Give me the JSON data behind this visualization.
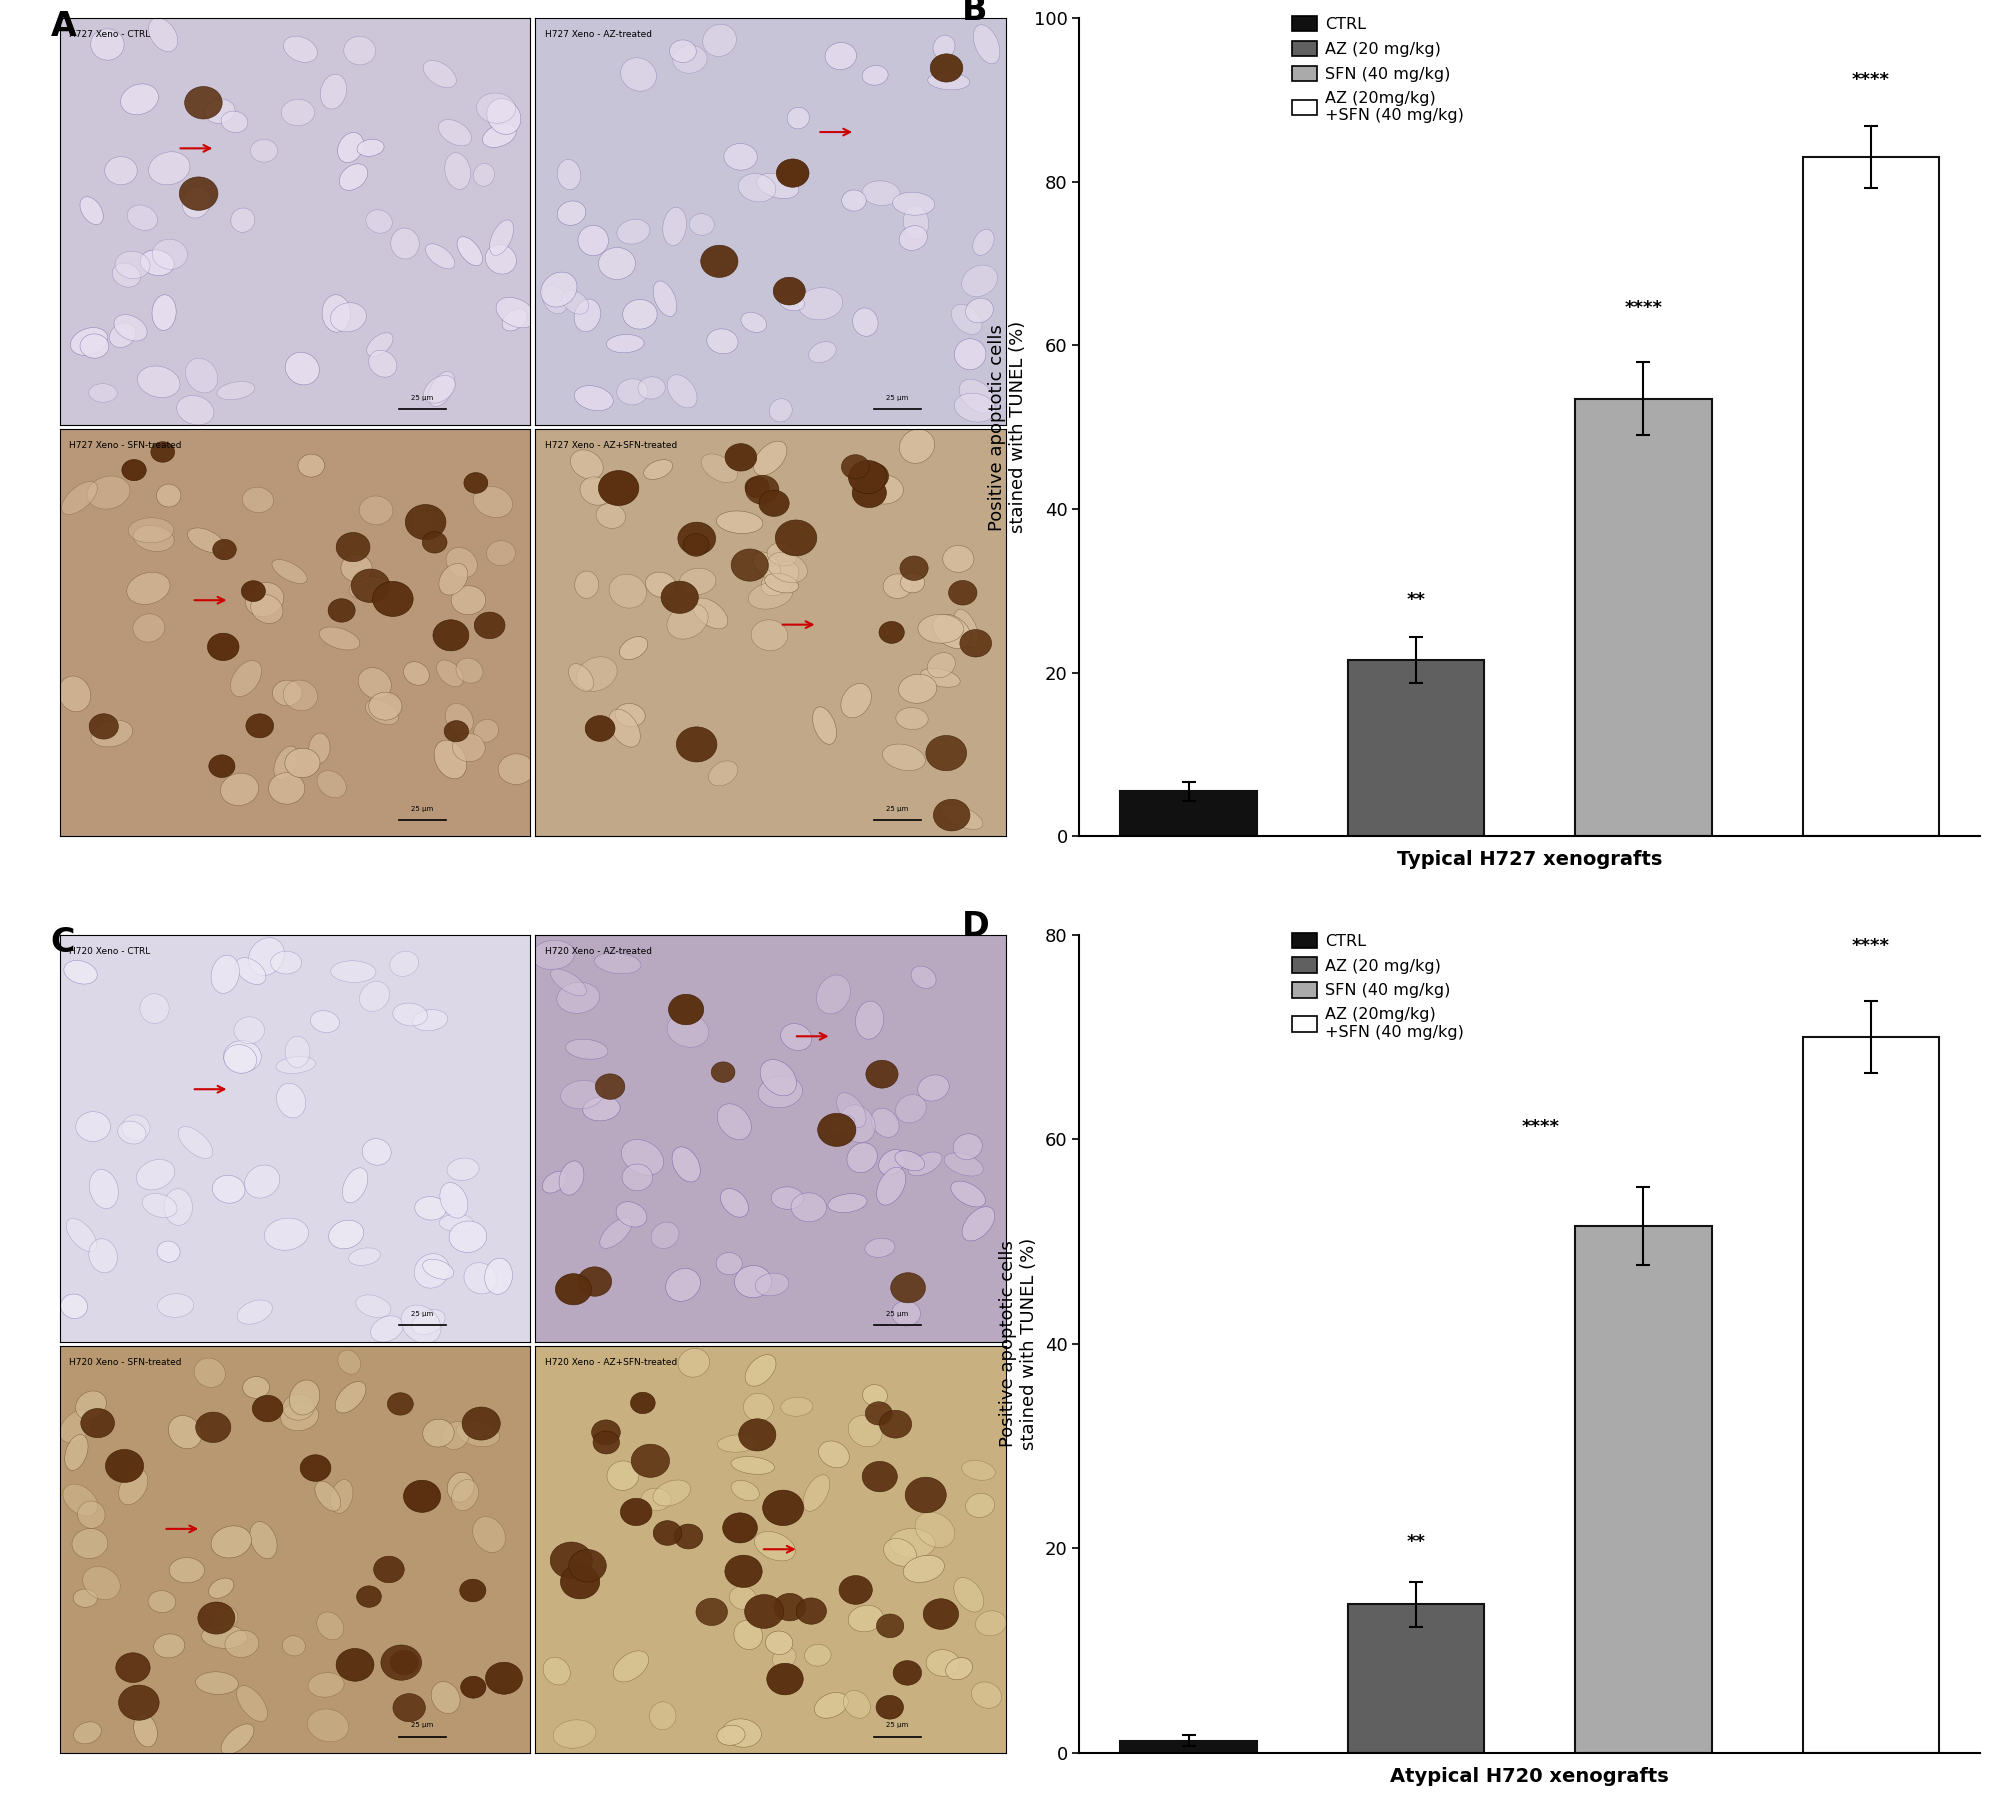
{
  "panel_B": {
    "title": "Typical H727 xenografts",
    "ylabel": "Positive apoptotic cells\nstained with TUNEL (%)",
    "ylim": [
      0,
      100
    ],
    "yticks": [
      0,
      20,
      40,
      60,
      80,
      100
    ],
    "values": [
      5.5,
      21.5,
      53.5,
      83.0
    ],
    "errors": [
      1.2,
      2.8,
      4.5,
      3.8
    ],
    "colors": [
      "#111111",
      "#606060",
      "#aaaaaa",
      "#ffffff"
    ],
    "edgecolors": [
      "#111111",
      "#111111",
      "#111111",
      "#111111"
    ],
    "significance": [
      "",
      "**",
      "****",
      "****"
    ],
    "legend_labels": [
      "CTRL",
      "AZ (20 mg/kg)",
      "SFN (40 mg/kg)",
      "AZ (20mg/kg)\n+SFN (40 mg/kg)"
    ]
  },
  "panel_D": {
    "title": "Atypical H720 xenografts",
    "ylabel": "Positive apoptotic cells\nstained with TUNEL (%)",
    "ylim": [
      0,
      80
    ],
    "yticks": [
      0,
      20,
      40,
      60,
      80
    ],
    "values": [
      1.2,
      14.5,
      51.5,
      70.0
    ],
    "errors": [
      0.5,
      2.2,
      3.8,
      3.5
    ],
    "colors": [
      "#111111",
      "#606060",
      "#aaaaaa",
      "#ffffff"
    ],
    "edgecolors": [
      "#111111",
      "#111111",
      "#111111",
      "#111111"
    ],
    "significance": [
      "",
      "**",
      "****",
      "****"
    ],
    "legend_labels": [
      "CTRL",
      "AZ (20 mg/kg)",
      "SFN (40 mg/kg)",
      "AZ (20mg/kg)\n+SFN (40 mg/kg)"
    ]
  },
  "bar_width": 0.6,
  "x_positions": [
    0,
    1,
    2,
    3
  ],
  "img_titles_A": [
    [
      "H727 Xeno - CTRL",
      "H727 Xeno - AZ-treated"
    ],
    [
      "H727 Xeno - SFN-treated",
      "H727 Xeno - AZ+SFN-treated"
    ]
  ],
  "img_titles_C": [
    [
      "H720 Xeno - CTRL",
      "H720 Xeno - AZ-treated"
    ],
    [
      "H720 Xeno - SFN-treated",
      "H720 Xeno - AZ+SFN-treated"
    ]
  ],
  "arrow_color": "#cc0000"
}
